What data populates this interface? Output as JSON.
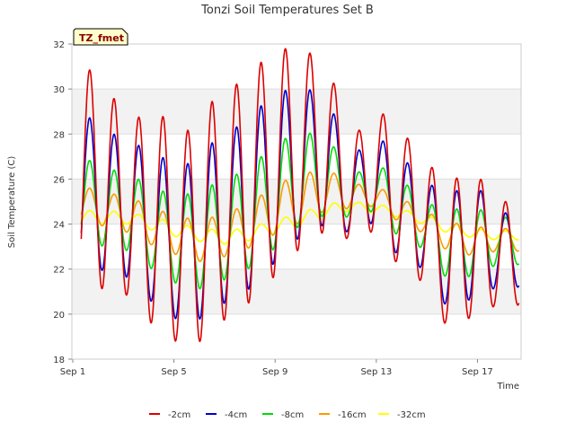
{
  "chart_data": {
    "type": "line",
    "title": "Tonzi Soil Temperatures Set B",
    "xlabel": "Time",
    "ylabel": "Soil Temperature (C)",
    "badge": "TZ_fmet",
    "xlim": [
      0,
      18
    ],
    "ylim": [
      18,
      32
    ],
    "x_ticks": [
      {
        "value": 0,
        "label": "Sep 1"
      },
      {
        "value": 4,
        "label": "Sep 5"
      },
      {
        "value": 8,
        "label": "Sep 9"
      },
      {
        "value": 12,
        "label": "Sep 13"
      },
      {
        "value": 16,
        "label": "Sep 17"
      }
    ],
    "y_ticks": [
      18,
      20,
      22,
      24,
      26,
      28,
      30,
      32
    ],
    "grid": true,
    "legend_position": "bottom",
    "series": [
      {
        "name": "-2cm",
        "color": "#dd0000",
        "daily": [
          {
            "day": 0,
            "min": 21.3,
            "max": 31.2
          },
          {
            "day": 1,
            "min": 21.1,
            "max": 30.2
          },
          {
            "day": 2,
            "min": 20.8,
            "max": 28.4
          },
          {
            "day": 3,
            "min": 19.4,
            "max": 29.4
          },
          {
            "day": 4,
            "min": 18.7,
            "max": 27.6
          },
          {
            "day": 5,
            "min": 18.8,
            "max": 29.2
          },
          {
            "day": 6,
            "min": 19.9,
            "max": 29.9
          },
          {
            "day": 7,
            "min": 20.6,
            "max": 30.8
          },
          {
            "day": 8,
            "min": 21.8,
            "max": 31.9
          },
          {
            "day": 9,
            "min": 23.0,
            "max": 31.6
          },
          {
            "day": 10,
            "min": 23.7,
            "max": 31.6
          },
          {
            "day": 11,
            "min": 23.3,
            "max": 27.6
          },
          {
            "day": 12,
            "min": 23.7,
            "max": 29.2
          },
          {
            "day": 13,
            "min": 22.1,
            "max": 28.3
          },
          {
            "day": 14,
            "min": 21.4,
            "max": 26.9
          },
          {
            "day": 15,
            "min": 19.3,
            "max": 25.8
          },
          {
            "day": 16,
            "min": 19.9,
            "max": 26.5
          },
          {
            "day": 17,
            "min": 20.4,
            "max": 25.0
          }
        ]
      },
      {
        "name": "-4cm",
        "color": "#0000cc",
        "daily": [
          {
            "day": 0,
            "min": 22.2,
            "max": 29.0
          },
          {
            "day": 1,
            "min": 21.9,
            "max": 28.2
          },
          {
            "day": 2,
            "min": 21.6,
            "max": 27.6
          },
          {
            "day": 3,
            "min": 20.4,
            "max": 27.3
          },
          {
            "day": 4,
            "min": 19.7,
            "max": 26.3
          },
          {
            "day": 5,
            "min": 19.8,
            "max": 27.4
          },
          {
            "day": 6,
            "min": 20.6,
            "max": 28.0
          },
          {
            "day": 7,
            "min": 21.2,
            "max": 28.9
          },
          {
            "day": 8,
            "min": 22.4,
            "max": 29.9
          },
          {
            "day": 9,
            "min": 23.5,
            "max": 30.0
          },
          {
            "day": 10,
            "min": 24.0,
            "max": 29.9
          },
          {
            "day": 11,
            "min": 23.6,
            "max": 26.9
          },
          {
            "day": 12,
            "min": 24.1,
            "max": 28.0
          },
          {
            "day": 13,
            "min": 22.5,
            "max": 27.1
          },
          {
            "day": 14,
            "min": 22.0,
            "max": 26.0
          },
          {
            "day": 15,
            "min": 20.2,
            "max": 25.2
          },
          {
            "day": 16,
            "min": 20.7,
            "max": 26.0
          },
          {
            "day": 17,
            "min": 21.2,
            "max": 24.5
          }
        ]
      },
      {
        "name": "-8cm",
        "color": "#00dd00",
        "daily": [
          {
            "day": 0,
            "min": 23.2,
            "max": 27.0
          },
          {
            "day": 1,
            "min": 23.0,
            "max": 26.5
          },
          {
            "day": 2,
            "min": 22.8,
            "max": 26.2
          },
          {
            "day": 3,
            "min": 21.9,
            "max": 25.6
          },
          {
            "day": 4,
            "min": 21.3,
            "max": 25.2
          },
          {
            "day": 5,
            "min": 21.1,
            "max": 25.6
          },
          {
            "day": 6,
            "min": 21.6,
            "max": 26.0
          },
          {
            "day": 7,
            "min": 22.1,
            "max": 26.6
          },
          {
            "day": 8,
            "min": 23.0,
            "max": 27.7
          },
          {
            "day": 9,
            "min": 24.0,
            "max": 28.0
          },
          {
            "day": 10,
            "min": 24.4,
            "max": 28.1
          },
          {
            "day": 11,
            "min": 24.3,
            "max": 26.1
          },
          {
            "day": 12,
            "min": 24.6,
            "max": 26.7
          },
          {
            "day": 13,
            "min": 23.4,
            "max": 26.1
          },
          {
            "day": 14,
            "min": 22.9,
            "max": 25.0
          },
          {
            "day": 15,
            "min": 21.5,
            "max": 24.6
          },
          {
            "day": 16,
            "min": 21.7,
            "max": 24.8
          },
          {
            "day": 17,
            "min": 22.2,
            "max": 24.3
          }
        ]
      },
      {
        "name": "-16cm",
        "color": "#ff9900",
        "daily": [
          {
            "day": 0,
            "min": 24.1,
            "max": 25.7
          },
          {
            "day": 1,
            "min": 23.9,
            "max": 25.4
          },
          {
            "day": 2,
            "min": 23.6,
            "max": 25.2
          },
          {
            "day": 3,
            "min": 23.0,
            "max": 24.7
          },
          {
            "day": 4,
            "min": 22.6,
            "max": 24.3
          },
          {
            "day": 5,
            "min": 22.3,
            "max": 24.2
          },
          {
            "day": 6,
            "min": 22.6,
            "max": 24.5
          },
          {
            "day": 7,
            "min": 23.0,
            "max": 25.0
          },
          {
            "day": 8,
            "min": 23.6,
            "max": 25.8
          },
          {
            "day": 9,
            "min": 24.1,
            "max": 26.2
          },
          {
            "day": 10,
            "min": 24.6,
            "max": 26.5
          },
          {
            "day": 11,
            "min": 24.7,
            "max": 25.8
          },
          {
            "day": 12,
            "min": 24.8,
            "max": 25.7
          },
          {
            "day": 13,
            "min": 24.1,
            "max": 25.2
          },
          {
            "day": 14,
            "min": 23.6,
            "max": 24.6
          },
          {
            "day": 15,
            "min": 22.8,
            "max": 24.1
          },
          {
            "day": 16,
            "min": 22.6,
            "max": 23.9
          },
          {
            "day": 17,
            "min": 22.8,
            "max": 23.8
          }
        ]
      },
      {
        "name": "-32cm",
        "color": "#ffff00",
        "daily": [
          {
            "day": 0,
            "min": 24.0,
            "max": 24.6
          },
          {
            "day": 1,
            "min": 24.0,
            "max": 24.6
          },
          {
            "day": 2,
            "min": 24.0,
            "max": 24.5
          },
          {
            "day": 3,
            "min": 23.7,
            "max": 24.3
          },
          {
            "day": 4,
            "min": 23.4,
            "max": 24.0
          },
          {
            "day": 5,
            "min": 23.2,
            "max": 23.8
          },
          {
            "day": 6,
            "min": 23.1,
            "max": 23.7
          },
          {
            "day": 7,
            "min": 23.3,
            "max": 23.9
          },
          {
            "day": 8,
            "min": 23.6,
            "max": 24.2
          },
          {
            "day": 9,
            "min": 23.9,
            "max": 24.5
          },
          {
            "day": 10,
            "min": 24.3,
            "max": 24.9
          },
          {
            "day": 11,
            "min": 24.6,
            "max": 25.0
          },
          {
            "day": 12,
            "min": 24.5,
            "max": 24.9
          },
          {
            "day": 13,
            "min": 24.3,
            "max": 24.7
          },
          {
            "day": 14,
            "min": 24.0,
            "max": 24.4
          },
          {
            "day": 15,
            "min": 23.6,
            "max": 24.1
          },
          {
            "day": 16,
            "min": 23.4,
            "max": 23.8
          },
          {
            "day": 17,
            "min": 23.3,
            "max": 23.7
          }
        ]
      }
    ]
  }
}
